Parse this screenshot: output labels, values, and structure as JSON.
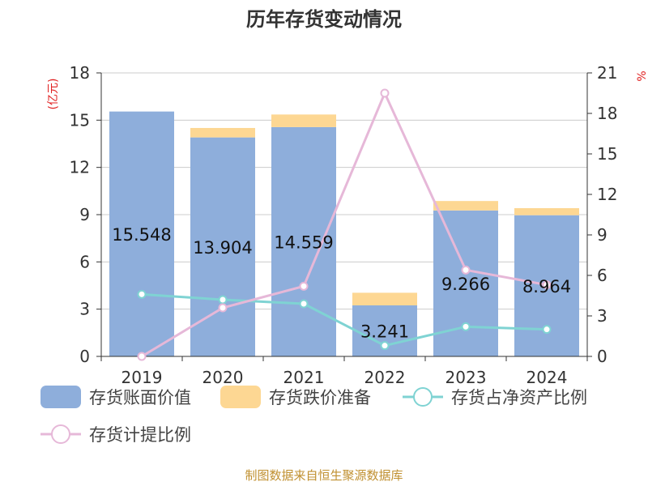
{
  "chart_data": {
    "type": "bar",
    "title": "历年存货变动情况",
    "categories": [
      "2019",
      "2020",
      "2021",
      "2022",
      "2023",
      "2024"
    ],
    "left_axis": {
      "name": "(亿元)",
      "range": [
        0,
        18
      ],
      "ticks": [
        "0",
        "3",
        "6",
        "9",
        "12",
        "15",
        "18"
      ]
    },
    "right_axis": {
      "name": "%",
      "range": [
        0,
        21
      ],
      "ticks": [
        "0",
        "3",
        "6",
        "9",
        "12",
        "15",
        "18",
        "21"
      ]
    },
    "series": [
      {
        "name": "存货账面价值",
        "kind": "bar",
        "stack": "inv",
        "axis": "left",
        "color": "#8eaedb",
        "values": [
          15.548,
          13.904,
          14.559,
          3.241,
          9.266,
          8.964
        ],
        "labels": [
          "15.548",
          "13.904",
          "14.559",
          "3.241",
          "9.266",
          "8.964"
        ]
      },
      {
        "name": "存货跌价准备",
        "kind": "bar",
        "stack": "inv",
        "axis": "left",
        "color": "#fdd793",
        "values": [
          0.0,
          0.6,
          0.8,
          0.8,
          0.6,
          0.45
        ]
      },
      {
        "name": "存货占净资产比例",
        "kind": "line",
        "axis": "right",
        "color": "#7fd3d3",
        "values": [
          4.6,
          4.2,
          3.9,
          0.8,
          2.2,
          2.0
        ]
      },
      {
        "name": "存货计提比例",
        "kind": "line",
        "axis": "right",
        "color": "#e6b8d8",
        "values": [
          0.0,
          3.6,
          5.2,
          19.5,
          6.4,
          5.3
        ]
      }
    ],
    "grid": true,
    "legend_position": "bottom"
  },
  "source": "制图数据来自恒生聚源数据库"
}
